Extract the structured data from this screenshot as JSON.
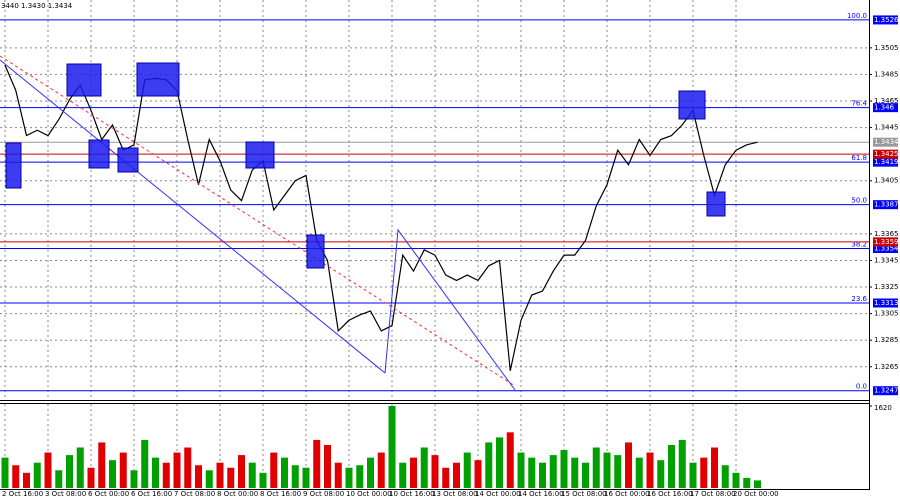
{
  "chart_data": [
    {
      "type": "line",
      "header": "3440 1.3430 1.3434",
      "categories": [
        "2 Oct 16:00",
        null,
        null,
        null,
        "3 Oct 08:00",
        null,
        null,
        null,
        "6 Oct 00:00",
        null,
        null,
        null,
        "6 Oct 16:00",
        null,
        null,
        null,
        "7 Oct 08:00",
        null,
        null,
        null,
        "8 Oct 00:00",
        null,
        null,
        null,
        "8 Oct 16:00",
        null,
        null,
        null,
        "9 Oct 08:00",
        null,
        null,
        null,
        "10 Oct 00:00",
        null,
        null,
        null,
        "10 Oct 16:00",
        null,
        null,
        null,
        "13 Oct 08:00",
        null,
        null,
        null,
        "14 Oct 00:00",
        null,
        null,
        null,
        "14 Oct 16:00",
        null,
        null,
        null,
        "15 Oct 08:00",
        null,
        null,
        null,
        "16 Oct 00:00",
        null,
        null,
        null,
        "16 Oct 16:00",
        null,
        null,
        null,
        "17 Oct 08:00",
        null,
        null,
        null,
        "20 Oct 00:00",
        null,
        null
      ],
      "series": [
        {
          "color": "#000000",
          "values": [
            1.3492,
            1.3473,
            1.3439,
            1.3443,
            1.3439,
            1.3451,
            1.3466,
            1.3477,
            1.3458,
            1.3436,
            1.3447,
            1.3428,
            1.3432,
            1.3481,
            1.3482,
            1.3481,
            1.3473,
            1.3436,
            1.3402,
            1.3436,
            1.342,
            1.3398,
            1.339,
            1.3413,
            1.342,
            1.3383,
            1.3394,
            1.3405,
            1.3409,
            1.336,
            1.3345,
            1.3292,
            1.33,
            1.3304,
            1.3307,
            1.3292,
            1.3296,
            1.3349,
            1.3337,
            1.3353,
            1.3349,
            1.3334,
            1.333,
            1.3334,
            1.333,
            1.3341,
            1.3345,
            1.3262,
            1.33,
            1.3319,
            1.3322,
            1.3337,
            1.3349,
            1.3349,
            1.336,
            1.3386,
            1.3402,
            1.3428,
            1.3417,
            1.3436,
            1.3424,
            1.3436,
            1.3439,
            1.3447,
            1.3458,
            1.3424,
            1.3394,
            1.3417,
            1.3428,
            1.3432,
            1.3434
          ]
        }
      ],
      "ylim": [
        1.324,
        1.3541
      ],
      "yticks": [
        1.3505,
        1.3485,
        1.3465,
        1.3445,
        1.3405,
        1.3365,
        1.3345,
        1.3325,
        1.3305,
        1.3285,
        1.3265
      ],
      "grid": true,
      "levels_color": "#0000ff",
      "levels": [
        {
          "label": "100.0",
          "value": 1.3526
        },
        {
          "label": "76.4",
          "value": 1.346
        },
        {
          "label": "61.8",
          "value": 1.3419
        },
        {
          "label": "50.0",
          "value": 1.3387
        },
        {
          "label": "38.2",
          "value": 1.3354
        },
        {
          "label": "23.6",
          "value": 1.3313
        },
        {
          "label": "0.0",
          "value": 1.3247
        }
      ],
      "lines": [
        {
          "value": 1.3425,
          "color": "#cc0000"
        },
        {
          "value": 1.3359,
          "color": "#cc0000"
        },
        {
          "value": 1.3434,
          "color": "#999999"
        }
      ]
    },
    {
      "type": "bar",
      "values": [
        600,
        450,
        300,
        500,
        700,
        350,
        650,
        800,
        400,
        900,
        550,
        700,
        350,
        950,
        600,
        500,
        700,
        800,
        450,
        350,
        500,
        400,
        650,
        500,
        300,
        700,
        600,
        450,
        400,
        950,
        850,
        500,
        400,
        450,
        600,
        700,
        1620,
        500,
        600,
        800,
        650,
        400,
        500,
        700,
        550,
        900,
        1000,
        1100,
        700,
        600,
        500,
        650,
        750,
        600,
        500,
        800,
        700,
        650,
        900,
        600,
        700,
        550,
        850,
        950,
        500,
        600,
        800,
        450,
        300,
        200,
        150
      ],
      "up_color": "#00a000",
      "down_color": "#e00000",
      "ylim": [
        0,
        1620
      ],
      "yticks": [
        1620
      ]
    }
  ]
}
